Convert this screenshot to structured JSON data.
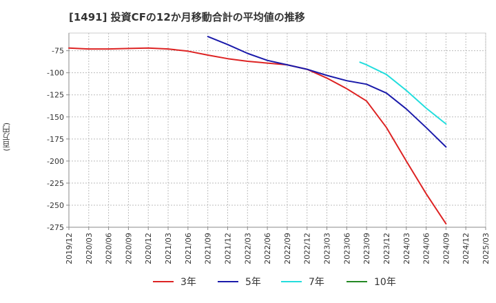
{
  "chart_data": {
    "type": "line",
    "title": "[1491]  投資CFの12か月移動合計の平均値の推移",
    "ylabel": "(百万円)",
    "xlabel": "",
    "ylim": [
      -275,
      -55
    ],
    "yticks": [
      -75,
      -100,
      -125,
      -150,
      -175,
      -200,
      -225,
      -250,
      -275
    ],
    "xticks": [
      "2019/12",
      "2020/03",
      "2020/06",
      "2020/09",
      "2020/12",
      "2021/03",
      "2021/06",
      "2021/09",
      "2021/12",
      "2022/03",
      "2022/06",
      "2022/09",
      "2022/12",
      "2023/03",
      "2023/06",
      "2023/09",
      "2023/12",
      "2024/03",
      "2024/06",
      "2024/09",
      "2024/12",
      "2025/03"
    ],
    "grid": true,
    "legend_position": "bottom",
    "series": [
      {
        "name": "3年",
        "color": "#dd2222",
        "points": [
          [
            "2019/12",
            -72
          ],
          [
            "2020/03",
            -73
          ],
          [
            "2020/06",
            -73
          ],
          [
            "2020/09",
            -72.5
          ],
          [
            "2020/12",
            -72
          ],
          [
            "2021/03",
            -73
          ],
          [
            "2021/06",
            -75.5
          ],
          [
            "2021/09",
            -80
          ],
          [
            "2021/12",
            -84
          ],
          [
            "2022/03",
            -87
          ],
          [
            "2022/06",
            -89
          ],
          [
            "2022/09",
            -91
          ],
          [
            "2022/12",
            -96
          ],
          [
            "2023/03",
            -106
          ],
          [
            "2023/06",
            -118
          ],
          [
            "2023/09",
            -132
          ],
          [
            "2023/12",
            -162
          ],
          [
            "2024/03",
            -200
          ],
          [
            "2024/06",
            -237
          ],
          [
            "2024/09",
            -271
          ]
        ]
      },
      {
        "name": "5年",
        "color": "#1a1aaa",
        "points": [
          [
            "2021/09",
            -59
          ],
          [
            "2021/12",
            -68
          ],
          [
            "2022/03",
            -78
          ],
          [
            "2022/06",
            -86
          ],
          [
            "2022/09",
            -91
          ],
          [
            "2022/12",
            -96
          ],
          [
            "2023/03",
            -103
          ],
          [
            "2023/06",
            -109
          ],
          [
            "2023/09",
            -113
          ],
          [
            "2023/12",
            -123
          ],
          [
            "2024/03",
            -141
          ],
          [
            "2024/06",
            -162
          ],
          [
            "2024/09",
            -184
          ]
        ]
      },
      {
        "name": "7年",
        "color": "#22dddd",
        "points": [
          [
            "2023/08",
            -88
          ],
          [
            "2023/09",
            -91
          ],
          [
            "2023/12",
            -102
          ],
          [
            "2024/03",
            -120
          ],
          [
            "2024/06",
            -140
          ],
          [
            "2024/09",
            -158
          ]
        ]
      },
      {
        "name": "10年",
        "color": "#228822",
        "points": []
      }
    ]
  }
}
